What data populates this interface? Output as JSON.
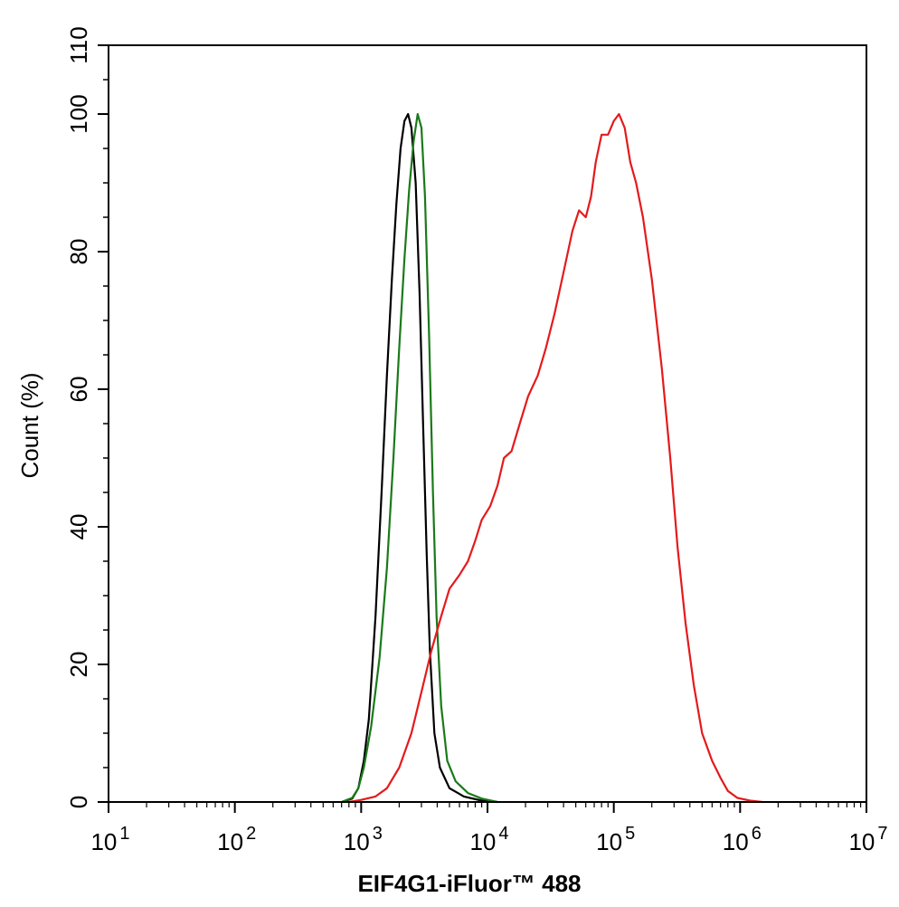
{
  "chart_data": {
    "type": "line",
    "title": "",
    "xlabel": "EIF4G1-iFluor™ 488",
    "ylabel": "Count  (%)",
    "x_scale": "log",
    "xlim": [
      10,
      10000000
    ],
    "ylim": [
      0,
      110
    ],
    "x_tick_labels": [
      {
        "base": "10",
        "exp": "1",
        "value": 10
      },
      {
        "base": "10",
        "exp": "2",
        "value": 100
      },
      {
        "base": "10",
        "exp": "3",
        "value": 1000
      },
      {
        "base": "10",
        "exp": "4",
        "value": 10000
      },
      {
        "base": "10",
        "exp": "5",
        "value": 100000
      },
      {
        "base": "10",
        "exp": "6",
        "value": 1000000
      },
      {
        "base": "10",
        "exp": "7",
        "value": 10000000
      }
    ],
    "y_ticks": [
      "0",
      "20",
      "40",
      "60",
      "80",
      "100",
      "110"
    ],
    "y_tick_values": [
      0,
      20,
      40,
      60,
      80,
      100,
      110
    ],
    "grid": false,
    "legend": "none",
    "series": [
      {
        "color": "#000000",
        "points": [
          [
            700,
            0
          ],
          [
            850,
            0.5
          ],
          [
            950,
            2
          ],
          [
            1050,
            6
          ],
          [
            1150,
            12
          ],
          [
            1300,
            27
          ],
          [
            1450,
            45
          ],
          [
            1600,
            62
          ],
          [
            1750,
            76
          ],
          [
            1900,
            87
          ],
          [
            2050,
            95
          ],
          [
            2200,
            99
          ],
          [
            2350,
            100
          ],
          [
            2500,
            98
          ],
          [
            2700,
            90
          ],
          [
            2900,
            74
          ],
          [
            3100,
            54
          ],
          [
            3300,
            36
          ],
          [
            3500,
            22
          ],
          [
            3800,
            10
          ],
          [
            4200,
            5
          ],
          [
            5000,
            2
          ],
          [
            6500,
            0.8
          ],
          [
            9000,
            0.2
          ],
          [
            12000,
            0
          ]
        ]
      },
      {
        "color": "#1a7a1a",
        "points": [
          [
            700,
            0
          ],
          [
            850,
            0.6
          ],
          [
            950,
            2
          ],
          [
            1050,
            5
          ],
          [
            1200,
            11
          ],
          [
            1400,
            21
          ],
          [
            1600,
            34
          ],
          [
            1800,
            50
          ],
          [
            2000,
            66
          ],
          [
            2200,
            79
          ],
          [
            2400,
            89
          ],
          [
            2600,
            96
          ],
          [
            2800,
            100
          ],
          [
            3000,
            98
          ],
          [
            3200,
            88
          ],
          [
            3450,
            68
          ],
          [
            3700,
            45
          ],
          [
            3950,
            27
          ],
          [
            4300,
            14
          ],
          [
            4800,
            6
          ],
          [
            5600,
            3
          ],
          [
            7000,
            1.3
          ],
          [
            9000,
            0.5
          ],
          [
            12000,
            0
          ]
        ]
      },
      {
        "color": "#e41a1c",
        "points": [
          [
            800,
            0
          ],
          [
            1000,
            0.3
          ],
          [
            1300,
            0.8
          ],
          [
            1600,
            2
          ],
          [
            2000,
            5
          ],
          [
            2500,
            10
          ],
          [
            3000,
            16
          ],
          [
            3600,
            22
          ],
          [
            4300,
            27
          ],
          [
            5000,
            31
          ],
          [
            6000,
            33
          ],
          [
            7000,
            35
          ],
          [
            8000,
            38
          ],
          [
            9000,
            41
          ],
          [
            10500,
            43
          ],
          [
            12000,
            46
          ],
          [
            13500,
            50
          ],
          [
            15500,
            51
          ],
          [
            18000,
            55
          ],
          [
            21000,
            59
          ],
          [
            25000,
            62
          ],
          [
            29000,
            66
          ],
          [
            34000,
            71
          ],
          [
            40000,
            77
          ],
          [
            47000,
            83
          ],
          [
            53000,
            86
          ],
          [
            60000,
            85
          ],
          [
            66000,
            88
          ],
          [
            72000,
            93
          ],
          [
            80000,
            97
          ],
          [
            90000,
            97
          ],
          [
            100000,
            99
          ],
          [
            110000,
            100
          ],
          [
            122000,
            98
          ],
          [
            135000,
            93
          ],
          [
            150000,
            90
          ],
          [
            170000,
            85
          ],
          [
            200000,
            76
          ],
          [
            240000,
            63
          ],
          [
            280000,
            50
          ],
          [
            320000,
            37
          ],
          [
            370000,
            26
          ],
          [
            430000,
            17
          ],
          [
            500000,
            10
          ],
          [
            600000,
            6
          ],
          [
            700000,
            3.5
          ],
          [
            800000,
            1.6
          ],
          [
            950000,
            0.6
          ],
          [
            1200000,
            0.2
          ],
          [
            1500000,
            0
          ]
        ]
      }
    ]
  }
}
